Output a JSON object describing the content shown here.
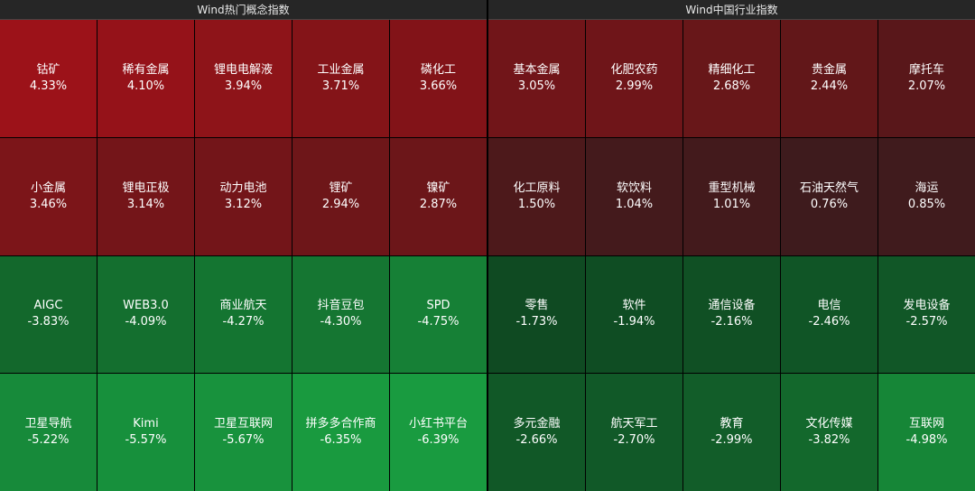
{
  "panels": [
    {
      "title": "Wind热门概念指数",
      "tiles": [
        {
          "name": "钴矿",
          "pct": "4.33%",
          "color": "#9c1219"
        },
        {
          "name": "稀有金属",
          "pct": "4.10%",
          "color": "#951219"
        },
        {
          "name": "锂电电解液",
          "pct": "3.94%",
          "color": "#8e1419"
        },
        {
          "name": "工业金属",
          "pct": "3.71%",
          "color": "#841418"
        },
        {
          "name": "磷化工",
          "pct": "3.66%",
          "color": "#821318"
        },
        {
          "name": "小金属",
          "pct": "3.46%",
          "color": "#7c1519"
        },
        {
          "name": "锂电正极",
          "pct": "3.14%",
          "color": "#741519"
        },
        {
          "name": "动力电池",
          "pct": "3.12%",
          "color": "#731519"
        },
        {
          "name": "锂矿",
          "pct": "2.94%",
          "color": "#6e1619"
        },
        {
          "name": "镍矿",
          "pct": "2.87%",
          "color": "#6c1619"
        },
        {
          "name": "AIGC",
          "pct": "-3.83%",
          "color": "#13682c"
        },
        {
          "name": "WEB3.0",
          "pct": "-4.09%",
          "color": "#146f2f"
        },
        {
          "name": "商业航天",
          "pct": "-4.27%",
          "color": "#147531"
        },
        {
          "name": "抖音豆包",
          "pct": "-4.30%",
          "color": "#157632"
        },
        {
          "name": "SPD",
          "pct": "-4.75%",
          "color": "#168036"
        },
        {
          "name": "卫星导航",
          "pct": "-5.22%",
          "color": "#178a3a"
        },
        {
          "name": "Kimi",
          "pct": "-5.57%",
          "color": "#17903c"
        },
        {
          "name": "卫星互联网",
          "pct": "-5.67%",
          "color": "#18923d"
        },
        {
          "name": "拼多多合作商",
          "pct": "-6.35%",
          "color": "#199a3f"
        },
        {
          "name": "小红书平台",
          "pct": "-6.39%",
          "color": "#199b40"
        }
      ]
    },
    {
      "title": "Wind中国行业指数",
      "tiles": [
        {
          "name": "基本金属",
          "pct": "3.05%",
          "color": "#711519"
        },
        {
          "name": "化肥农药",
          "pct": "2.99%",
          "color": "#6f1519"
        },
        {
          "name": "精细化工",
          "pct": "2.68%",
          "color": "#681719"
        },
        {
          "name": "贵金属",
          "pct": "2.44%",
          "color": "#621719"
        },
        {
          "name": "摩托车",
          "pct": "2.07%",
          "color": "#59171a"
        },
        {
          "name": "化工原料",
          "pct": "1.50%",
          "color": "#4d191b"
        },
        {
          "name": "软饮料",
          "pct": "1.04%",
          "color": "#441a1c"
        },
        {
          "name": "重型机械",
          "pct": "1.01%",
          "color": "#431a1c"
        },
        {
          "name": "石油天然气",
          "pct": "0.76%",
          "color": "#3e1b1d"
        },
        {
          "name": "海运",
          "pct": "0.85%",
          "color": "#401b1d"
        },
        {
          "name": "零售",
          "pct": "-1.73%",
          "color": "#0f4a22"
        },
        {
          "name": "软件",
          "pct": "-1.94%",
          "color": "#0f4d23"
        },
        {
          "name": "通信设备",
          "pct": "-2.16%",
          "color": "#105024"
        },
        {
          "name": "电信",
          "pct": "-2.46%",
          "color": "#105526"
        },
        {
          "name": "发电设备",
          "pct": "-2.57%",
          "color": "#115727"
        },
        {
          "name": "多元金融",
          "pct": "-2.66%",
          "color": "#115827"
        },
        {
          "name": "航天军工",
          "pct": "-2.70%",
          "color": "#115928"
        },
        {
          "name": "教育",
          "pct": "-2.99%",
          "color": "#125d29"
        },
        {
          "name": "文化传媒",
          "pct": "-3.82%",
          "color": "#13682c"
        },
        {
          "name": "互联网",
          "pct": "-4.98%",
          "color": "#168637"
        }
      ]
    }
  ]
}
